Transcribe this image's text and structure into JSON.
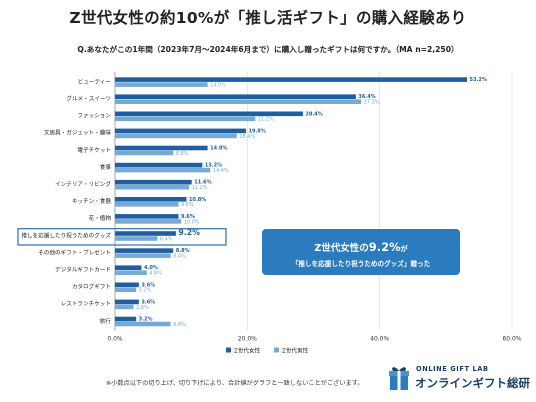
{
  "page": {
    "title": "Z世代女性の約10%が「推し活ギフト」の購入経験あり",
    "question": "Q.あなたがこの1年間（2023年7月～2024年6月まで）に購入し贈ったギフトは何ですか。（MA n=2,250）",
    "footnote": "※小数点以下の切り上げ、切り下げにより、合計値がグラフと一致しないことがございます。",
    "logo": {
      "en_text": "ONLINE GIFT LAB",
      "jp_text": "オンラインギフト総研",
      "icon": "gift-box-icon"
    }
  },
  "callout": {
    "line1_prefix": "Z世代女性の",
    "line1_value": "9.2%",
    "line1_suffix": "が",
    "line2": "「推しを応援したり祝うためのグッズ」贈った"
  },
  "colors": {
    "female": "#1f5fa0",
    "male": "#74aad8",
    "callout_bg": "#2b7bbf",
    "highlight_border": "#2f6fb0"
  },
  "chart_data": {
    "type": "bar",
    "orientation": "horizontal",
    "categories": [
      "ビューティー",
      "グルメ・スイーツ",
      "ファッション",
      "文房具・ガジェット・趣味",
      "電子チケット",
      "食事",
      "インテリア・リビング",
      "キッチン・食器",
      "花・植物",
      "推しを応援したり祝うためのグッズ",
      "その他のギフト・プレゼント",
      "デジタルギフトカード",
      "カタログギフト",
      "レストランチケット",
      "旅行"
    ],
    "series": [
      {
        "name": "Z世代女性",
        "values": [
          53.2,
          36.4,
          28.4,
          19.8,
          14.0,
          13.2,
          11.6,
          10.8,
          9.6,
          9.2,
          8.8,
          4.0,
          3.6,
          3.6,
          3.2
        ],
        "labels": [
          "53.2%",
          "36.4%",
          "28.4%",
          "19.8%",
          "14.0%",
          "13.2%",
          "11.6%",
          "10.8%",
          "9.6%",
          "9.2%",
          "8.8%",
          "4.0%",
          "3.6%",
          "3.6%",
          "3.2%"
        ]
      },
      {
        "name": "Z世代男性",
        "values": [
          14.0,
          37.2,
          21.2,
          18.4,
          8.8,
          14.4,
          11.2,
          9.6,
          10.0,
          6.4,
          8.4,
          4.8,
          3.2,
          2.8,
          8.4
        ],
        "labels": [
          "14.0%",
          "37.2%",
          "21.2%",
          "18.4%",
          "8.8%",
          "14.4%",
          "11.2%",
          "9.6%",
          "10.0%",
          "6.4%",
          "8.4%",
          "4.8%",
          "3.2%",
          "2.8%",
          "8.4%"
        ]
      }
    ],
    "highlighted_category": "推しを応援したり祝うためのグッズ",
    "xlim": [
      0,
      60
    ],
    "xticks": [
      "0.0%",
      "20.0%",
      "40.0%",
      "60.0%"
    ],
    "grid": true,
    "legend_position": "bottom"
  }
}
